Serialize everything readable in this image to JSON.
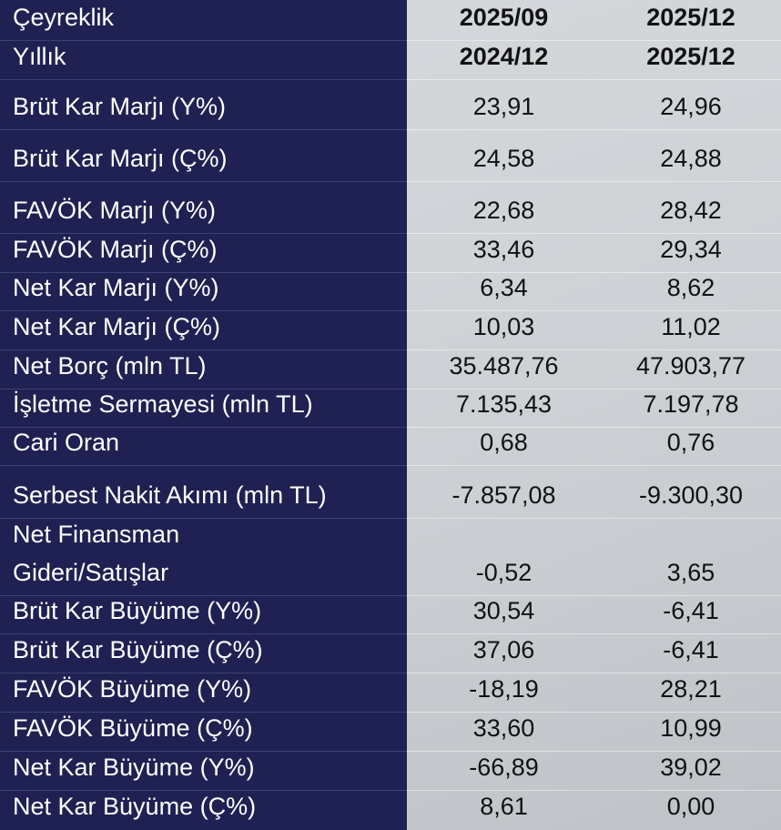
{
  "table": {
    "header_rows": [
      [
        "Çeyreklik",
        "2025/09",
        "2025/12"
      ],
      [
        "Yıllık",
        "2024/12",
        "2025/12"
      ]
    ],
    "rows": [
      [
        "Brüt Kar Marjı (Y%)",
        "23,91",
        "24,96"
      ],
      [
        "Brüt Kar Marjı (Ç%)",
        "24,58",
        "24,88"
      ],
      [
        "FAVÖK Marjı (Y%)",
        "22,68",
        "28,42"
      ],
      [
        "FAVÖK Marjı (Ç%)",
        "33,46",
        "29,34"
      ],
      [
        "Net Kar Marjı (Y%)",
        "6,34",
        "8,62"
      ],
      [
        "Net Kar Marjı (Ç%)",
        "10,03",
        "11,02"
      ],
      [
        "Net Borç (mln TL)",
        "35.487,76",
        "47.903,77"
      ],
      [
        "İşletme Sermayesi (mln TL)",
        "7.135,43",
        "7.197,78"
      ],
      [
        "Cari Oran",
        "0,68",
        "0,76"
      ],
      [
        "Serbest Nakit Akımı (mln TL)",
        "-7.857,08",
        "-9.300,30"
      ],
      [
        "Net Finansman\nGideri/Satışlar",
        "-0,52",
        "3,65"
      ],
      [
        "Brüt Kar Büyüme (Y%)",
        "30,54",
        "-6,41"
      ],
      [
        "Brüt Kar Büyüme (Ç%)",
        "37,06",
        "-6,41"
      ],
      [
        "FAVÖK Büyüme (Y%)",
        "-18,19",
        "28,21"
      ],
      [
        "FAVÖK Büyüme (Ç%)",
        "33,60",
        "10,99"
      ],
      [
        "Net Kar Büyüme (Y%)",
        "-66,89",
        "39,02"
      ],
      [
        "Net Kar Büyüme (Ç%)",
        "8,61",
        "0,00"
      ]
    ]
  }
}
